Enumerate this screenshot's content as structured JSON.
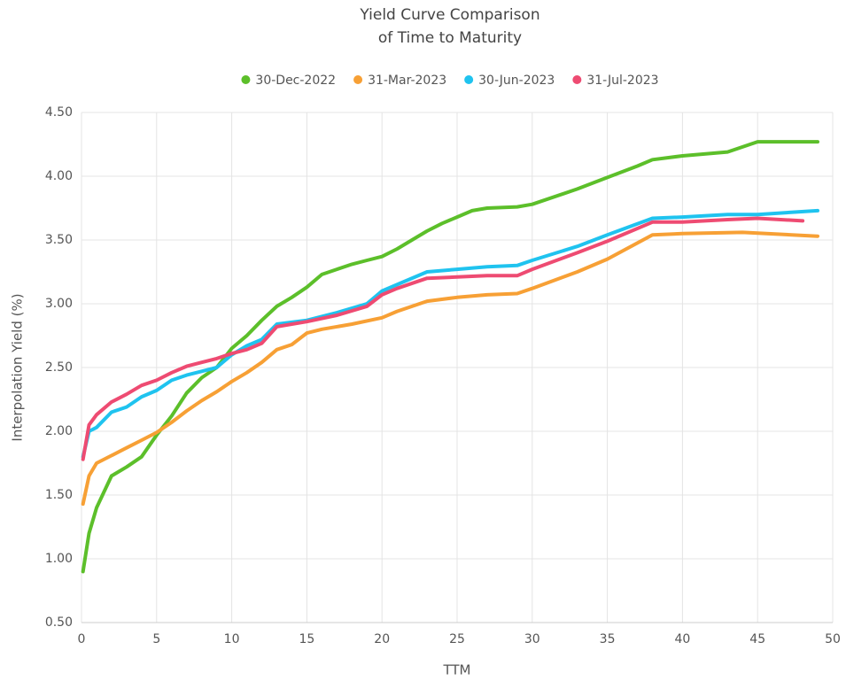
{
  "chart_data": {
    "type": "line",
    "title": [
      "Yield Curve Comparison",
      "of Time to Maturity"
    ],
    "x_label": "TTM",
    "y_label": "Interpolation Yield (%)",
    "xlim": [
      0,
      50
    ],
    "xticks": [
      0,
      5,
      10,
      15,
      20,
      25,
      30,
      35,
      40,
      45,
      50
    ],
    "ylim": [
      0.5,
      4.5
    ],
    "yticks": [
      {
        "value": 0.5,
        "label": "0.50"
      },
      {
        "value": 1,
        "label": "1.00"
      },
      {
        "value": 1.5,
        "label": "1.50"
      },
      {
        "value": 2,
        "label": "2.00"
      },
      {
        "value": 2.5,
        "label": "2.50"
      },
      {
        "value": 3,
        "label": "3.00"
      },
      {
        "value": 3.5,
        "label": "3.50"
      },
      {
        "value": 4,
        "label": "4.00"
      },
      {
        "value": 4.5,
        "label": "4.50"
      }
    ],
    "grid": true,
    "legend": "top",
    "series": [
      {
        "name": "30-Dec-2022",
        "color": "#5cbf2a",
        "x": [
          0.1,
          0.5,
          1,
          2,
          3,
          4,
          5,
          6,
          7,
          8,
          9,
          10,
          11,
          12,
          13,
          14,
          15,
          16,
          17,
          18,
          19,
          20,
          21,
          22,
          23,
          24,
          25,
          26,
          27,
          29,
          30,
          33,
          35,
          37,
          38,
          40,
          43,
          45,
          49
        ],
        "values": [
          0.9,
          1.2,
          1.4,
          1.65,
          1.72,
          1.8,
          1.97,
          2.12,
          2.3,
          2.42,
          2.5,
          2.65,
          2.75,
          2.87,
          2.98,
          3.05,
          3.13,
          3.23,
          3.27,
          3.31,
          3.34,
          3.37,
          3.43,
          3.5,
          3.57,
          3.63,
          3.68,
          3.73,
          3.75,
          3.76,
          3.78,
          3.9,
          3.99,
          4.08,
          4.13,
          4.16,
          4.19,
          4.27,
          4.27
        ]
      },
      {
        "name": "31-Mar-2023",
        "color": "#f7a035",
        "x": [
          0.1,
          0.5,
          1,
          2,
          3,
          4,
          5,
          6,
          7,
          8,
          9,
          10,
          11,
          12,
          13,
          14,
          15,
          16,
          18,
          20,
          21,
          23,
          25,
          27,
          29,
          30,
          33,
          35,
          38,
          40,
          44,
          49
        ],
        "values": [
          1.43,
          1.65,
          1.75,
          1.81,
          1.87,
          1.93,
          1.99,
          2.07,
          2.16,
          2.24,
          2.31,
          2.39,
          2.46,
          2.54,
          2.64,
          2.68,
          2.77,
          2.8,
          2.84,
          2.89,
          2.94,
          3.02,
          3.05,
          3.07,
          3.08,
          3.12,
          3.25,
          3.35,
          3.54,
          3.55,
          3.56,
          3.53
        ]
      },
      {
        "name": "30-Jun-2023",
        "color": "#1fc3ef",
        "x": [
          0.1,
          0.5,
          1,
          2,
          3,
          4,
          5,
          6,
          7,
          8,
          9,
          10,
          11,
          12,
          13,
          15,
          17,
          19,
          20,
          21,
          23,
          25,
          27,
          29,
          30,
          33,
          35,
          38,
          40,
          43,
          45,
          49
        ],
        "values": [
          1.8,
          2.0,
          2.03,
          2.15,
          2.19,
          2.27,
          2.32,
          2.4,
          2.44,
          2.47,
          2.5,
          2.6,
          2.67,
          2.72,
          2.84,
          2.87,
          2.93,
          3.0,
          3.1,
          3.15,
          3.25,
          3.27,
          3.29,
          3.3,
          3.34,
          3.45,
          3.54,
          3.67,
          3.68,
          3.7,
          3.7,
          3.73
        ]
      },
      {
        "name": "31-Jul-2023",
        "color": "#ee4b72",
        "x": [
          0.1,
          0.5,
          1,
          2,
          3,
          4,
          5,
          6,
          7,
          8,
          9,
          10,
          11,
          12,
          13,
          15,
          17,
          19,
          20,
          21,
          23,
          25,
          27,
          29,
          30,
          33,
          35,
          38,
          40,
          43,
          45,
          48
        ],
        "values": [
          1.78,
          2.05,
          2.13,
          2.23,
          2.29,
          2.36,
          2.4,
          2.46,
          2.51,
          2.54,
          2.57,
          2.61,
          2.64,
          2.69,
          2.82,
          2.86,
          2.91,
          2.98,
          3.07,
          3.12,
          3.2,
          3.21,
          3.22,
          3.22,
          3.27,
          3.4,
          3.49,
          3.64,
          3.64,
          3.66,
          3.67,
          3.65
        ]
      }
    ]
  }
}
